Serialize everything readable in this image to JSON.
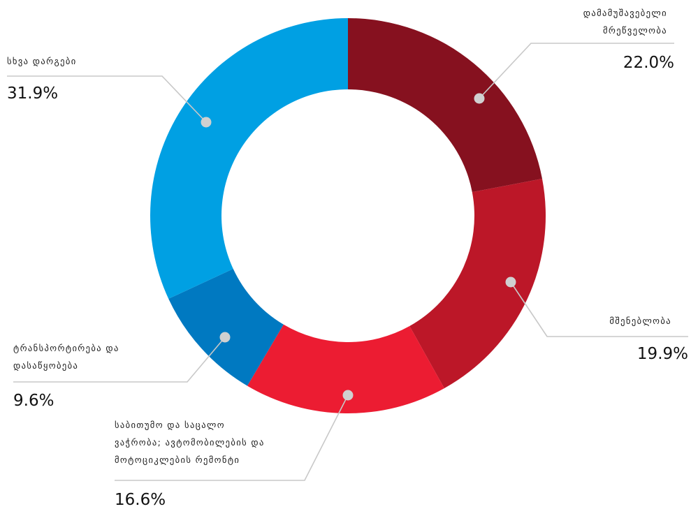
{
  "chart_data": {
    "type": "pie",
    "categories": [
      "დამამუშავებელი\nმრეწველობა",
      "მშენებლობა",
      "საბითუმო და საცალო\nვაჭრობა; ავტომობილების და\nმოტოციკლების რემონტი",
      "ტრანსპორტირება და\nდასაწყობება",
      "სხვა დარგები"
    ],
    "values": [
      22.0,
      19.9,
      16.6,
      9.6,
      31.9
    ],
    "value_labels": [
      "22.0%",
      "19.9%",
      "16.6%",
      "9.6%",
      "31.9%"
    ],
    "colors": [
      "#86111f",
      "#bc1728",
      "#ec1c32",
      "#0079c1",
      "#00a0e3"
    ],
    "unit": "%",
    "legend": "none"
  }
}
